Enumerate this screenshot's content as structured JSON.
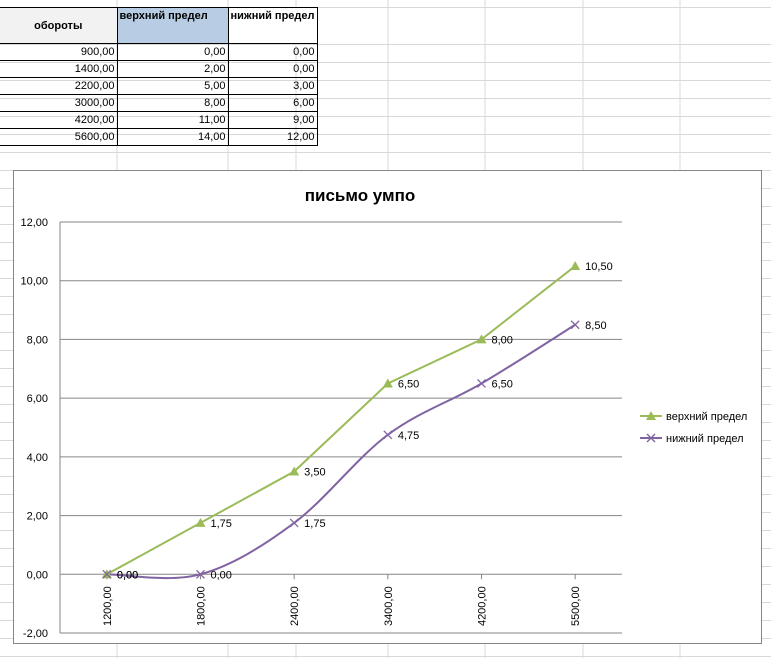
{
  "table": {
    "headers": [
      "обороты",
      "верхний предел",
      "нижний предел"
    ],
    "rows": [
      [
        "900,00",
        "0,00",
        "0,00"
      ],
      [
        "1400,00",
        "2,00",
        "0,00"
      ],
      [
        "2200,00",
        "5,00",
        "3,00"
      ],
      [
        "3000,00",
        "8,00",
        "6,00"
      ],
      [
        "4200,00",
        "11,00",
        "9,00"
      ],
      [
        "5600,00",
        "14,00",
        "12,00"
      ]
    ]
  },
  "chart_data": {
    "type": "line",
    "title": "письмо умпо",
    "categories": [
      "1200,00",
      "1800,00",
      "2400,00",
      "3400,00",
      "4200,00",
      "5500,00"
    ],
    "series": [
      {
        "name": "верхний предел",
        "values": [
          0.0,
          1.75,
          3.5,
          6.5,
          8.0,
          10.5
        ],
        "labels": [
          "0,00",
          "1,75",
          "3,50",
          "6,50",
          "8,00",
          "10,50"
        ],
        "color": "#9bbb59",
        "marker": "triangle",
        "smooth": false
      },
      {
        "name": "нижний предел",
        "values": [
          0.0,
          0.0,
          1.75,
          4.75,
          6.5,
          8.5
        ],
        "labels": [
          "0,00",
          "0,00",
          "1,75",
          "4,75",
          "6,50",
          "8,50"
        ],
        "color": "#8064a2",
        "marker": "x",
        "smooth": true
      }
    ],
    "ylim": [
      -2,
      12
    ],
    "yticks": [
      -2,
      0,
      2,
      4,
      6,
      8,
      10,
      12
    ],
    "ytick_labels": [
      "-2,00",
      "0,00",
      "2,00",
      "4,00",
      "6,00",
      "8,00",
      "10,00",
      "12,00"
    ],
    "grid": true,
    "legend": "right"
  }
}
